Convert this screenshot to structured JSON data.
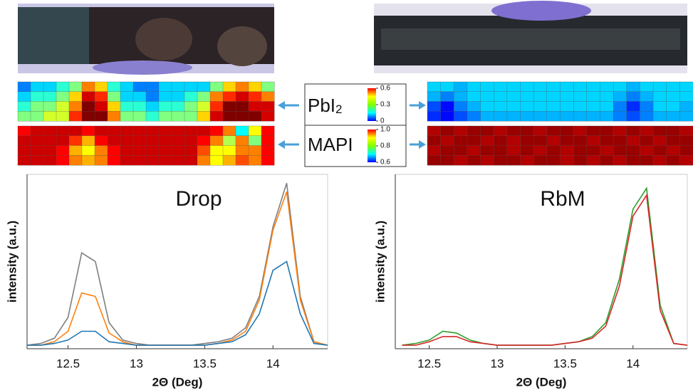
{
  "legend": {
    "pbi2": {
      "label": "PbI",
      "subscript": "2",
      "zlim": [
        0,
        0.6
      ],
      "ticks": [
        0,
        0.3,
        0.6
      ]
    },
    "mapi": {
      "label": "MAPI",
      "zlim": [
        0.6,
        1.0
      ],
      "ticks": [
        0.6,
        0.8,
        {
          "value": 1.0,
          "label": "1.0"
        }
      ]
    }
  },
  "chart_data": [
    {
      "type": "heatmap",
      "colormap": "jet",
      "scale": "pbi2",
      "zlim": [
        0,
        0.6
      ],
      "values": [
        [
          0.15,
          0.2,
          0.2,
          0.25,
          0.3,
          0.45,
          0.4,
          0.25,
          0.2,
          0.15,
          0.15,
          0.2,
          0.2,
          0.2,
          0.2,
          0.3,
          0.4,
          0.45,
          0.4,
          0.3
        ],
        [
          0.2,
          0.25,
          0.25,
          0.3,
          0.4,
          0.55,
          0.5,
          0.3,
          0.2,
          0.2,
          0.15,
          0.2,
          0.2,
          0.25,
          0.3,
          0.45,
          0.5,
          0.55,
          0.5,
          0.45
        ],
        [
          0.25,
          0.3,
          0.3,
          0.35,
          0.45,
          0.6,
          0.55,
          0.4,
          0.25,
          0.25,
          0.2,
          0.25,
          0.25,
          0.3,
          0.35,
          0.5,
          0.6,
          0.6,
          0.55,
          0.55
        ],
        [
          0.3,
          0.3,
          0.35,
          0.35,
          0.5,
          0.6,
          0.6,
          0.45,
          0.3,
          0.3,
          0.25,
          0.3,
          0.3,
          0.3,
          0.4,
          0.55,
          0.6,
          0.6,
          0.6,
          0.55
        ]
      ]
    },
    {
      "type": "heatmap",
      "colormap": "jet",
      "scale": "mapi",
      "zlim": [
        0.6,
        1.0
      ],
      "values": [
        [
          0.95,
          0.97,
          0.97,
          0.97,
          0.97,
          0.95,
          0.97,
          0.97,
          0.97,
          0.97,
          0.97,
          0.97,
          0.97,
          0.97,
          0.97,
          0.95,
          0.9,
          0.75,
          0.85,
          0.95
        ],
        [
          0.97,
          0.97,
          0.97,
          0.97,
          0.93,
          0.88,
          0.95,
          0.97,
          0.97,
          0.97,
          0.97,
          0.97,
          0.97,
          0.97,
          0.95,
          0.9,
          0.82,
          0.9,
          0.8,
          0.95
        ],
        [
          0.97,
          0.97,
          0.97,
          0.95,
          0.88,
          0.85,
          0.9,
          0.95,
          0.97,
          0.97,
          0.97,
          0.97,
          0.97,
          0.97,
          0.92,
          0.85,
          0.85,
          0.9,
          0.9,
          0.95
        ],
        [
          0.97,
          0.97,
          0.97,
          0.95,
          0.9,
          0.88,
          0.9,
          0.95,
          0.97,
          0.97,
          0.97,
          0.97,
          0.97,
          0.97,
          0.9,
          0.85,
          0.88,
          0.92,
          0.9,
          0.95
        ]
      ]
    },
    {
      "type": "heatmap",
      "colormap": "jet",
      "scale": "pbi2",
      "zlim": [
        0,
        0.6
      ],
      "values": [
        [
          0.2,
          0.2,
          0.18,
          0.2,
          0.2,
          0.2,
          0.2,
          0.2,
          0.2,
          0.2,
          0.2,
          0.2,
          0.2,
          0.2,
          0.2,
          0.18,
          0.2,
          0.2,
          0.2,
          0.2
        ],
        [
          0.18,
          0.15,
          0.18,
          0.2,
          0.2,
          0.2,
          0.2,
          0.2,
          0.2,
          0.2,
          0.2,
          0.2,
          0.2,
          0.2,
          0.18,
          0.15,
          0.18,
          0.2,
          0.2,
          0.2
        ],
        [
          0.12,
          0.08,
          0.15,
          0.18,
          0.2,
          0.2,
          0.2,
          0.2,
          0.2,
          0.2,
          0.2,
          0.2,
          0.2,
          0.2,
          0.15,
          0.1,
          0.15,
          0.2,
          0.2,
          0.18
        ],
        [
          0.1,
          0.08,
          0.12,
          0.15,
          0.18,
          0.18,
          0.18,
          0.18,
          0.18,
          0.18,
          0.18,
          0.18,
          0.18,
          0.18,
          0.15,
          0.12,
          0.15,
          0.18,
          0.18,
          0.18
        ]
      ]
    },
    {
      "type": "heatmap",
      "colormap": "jet",
      "scale": "mapi",
      "zlim": [
        0.6,
        1.0
      ],
      "values": [
        [
          0.98,
          0.99,
          0.98,
          0.99,
          0.99,
          0.98,
          0.99,
          0.99,
          0.98,
          0.99,
          0.99,
          0.98,
          0.99,
          0.99,
          0.98,
          0.99,
          0.98,
          0.99,
          0.99,
          0.98
        ],
        [
          0.99,
          0.98,
          0.99,
          0.99,
          0.98,
          0.99,
          0.98,
          0.99,
          0.99,
          0.98,
          0.99,
          0.99,
          0.98,
          0.99,
          0.99,
          0.98,
          0.99,
          0.98,
          0.99,
          0.99
        ],
        [
          0.98,
          0.99,
          0.99,
          0.98,
          0.99,
          0.99,
          0.98,
          0.99,
          0.98,
          0.99,
          0.98,
          0.99,
          0.99,
          0.98,
          0.99,
          0.99,
          0.98,
          0.99,
          0.98,
          0.99
        ],
        [
          0.99,
          0.99,
          0.98,
          0.99,
          0.98,
          0.99,
          0.99,
          0.98,
          0.99,
          0.99,
          0.98,
          0.99,
          0.98,
          0.99,
          0.98,
          0.99,
          0.99,
          0.98,
          0.99,
          0.98
        ]
      ]
    },
    {
      "type": "line",
      "title": "Drop",
      "xlabel": "2Θ (Deg)",
      "ylabel": "intensity (a.u.)",
      "xlim": [
        12.2,
        14.4
      ],
      "ylim": [
        0,
        1
      ],
      "xticks": [
        12.5,
        13,
        13.5,
        14
      ],
      "x": [
        12.2,
        12.3,
        12.4,
        12.5,
        12.6,
        12.7,
        12.8,
        12.9,
        13.0,
        13.1,
        13.2,
        13.3,
        13.4,
        13.5,
        13.6,
        13.7,
        13.8,
        13.9,
        14.0,
        14.1,
        14.2,
        14.3,
        14.4
      ],
      "series": [
        {
          "color": "#7f7f7f",
          "values": [
            0.02,
            0.03,
            0.06,
            0.18,
            0.55,
            0.5,
            0.15,
            0.05,
            0.03,
            0.02,
            0.02,
            0.02,
            0.02,
            0.03,
            0.04,
            0.06,
            0.12,
            0.3,
            0.7,
            0.95,
            0.3,
            0.04,
            0.02
          ]
        },
        {
          "color": "#ff7f0e",
          "values": [
            0.02,
            0.02,
            0.04,
            0.1,
            0.32,
            0.3,
            0.09,
            0.04,
            0.02,
            0.02,
            0.02,
            0.02,
            0.02,
            0.02,
            0.03,
            0.05,
            0.1,
            0.28,
            0.68,
            0.9,
            0.28,
            0.04,
            0.02
          ]
        },
        {
          "color": "#1f77b4",
          "values": [
            0.02,
            0.02,
            0.03,
            0.05,
            0.1,
            0.1,
            0.04,
            0.03,
            0.02,
            0.02,
            0.02,
            0.02,
            0.02,
            0.02,
            0.03,
            0.04,
            0.08,
            0.2,
            0.45,
            0.5,
            0.2,
            0.03,
            0.02
          ]
        }
      ]
    },
    {
      "type": "line",
      "title": "RbM",
      "xlabel": "2Θ (Deg)",
      "ylabel": "intensity (a.u.)",
      "xlim": [
        12.25,
        14.4
      ],
      "ylim": [
        0,
        1
      ],
      "xticks": [
        12.5,
        13,
        13.5,
        14
      ],
      "x": [
        12.3,
        12.4,
        12.5,
        12.6,
        12.7,
        12.8,
        12.9,
        13.0,
        13.1,
        13.2,
        13.3,
        13.4,
        13.5,
        13.6,
        13.7,
        13.8,
        13.9,
        14.0,
        14.1,
        14.2,
        14.3,
        14.4
      ],
      "series": [
        {
          "color": "#2ca02c",
          "values": [
            0.02,
            0.03,
            0.05,
            0.1,
            0.09,
            0.05,
            0.03,
            0.02,
            0.02,
            0.02,
            0.02,
            0.02,
            0.03,
            0.04,
            0.07,
            0.15,
            0.4,
            0.8,
            0.92,
            0.25,
            0.03,
            0.02
          ]
        },
        {
          "color": "#d62728",
          "values": [
            0.02,
            0.02,
            0.04,
            0.07,
            0.07,
            0.04,
            0.03,
            0.02,
            0.02,
            0.02,
            0.02,
            0.02,
            0.03,
            0.04,
            0.06,
            0.13,
            0.36,
            0.76,
            0.88,
            0.22,
            0.03,
            0.02
          ]
        }
      ]
    }
  ]
}
